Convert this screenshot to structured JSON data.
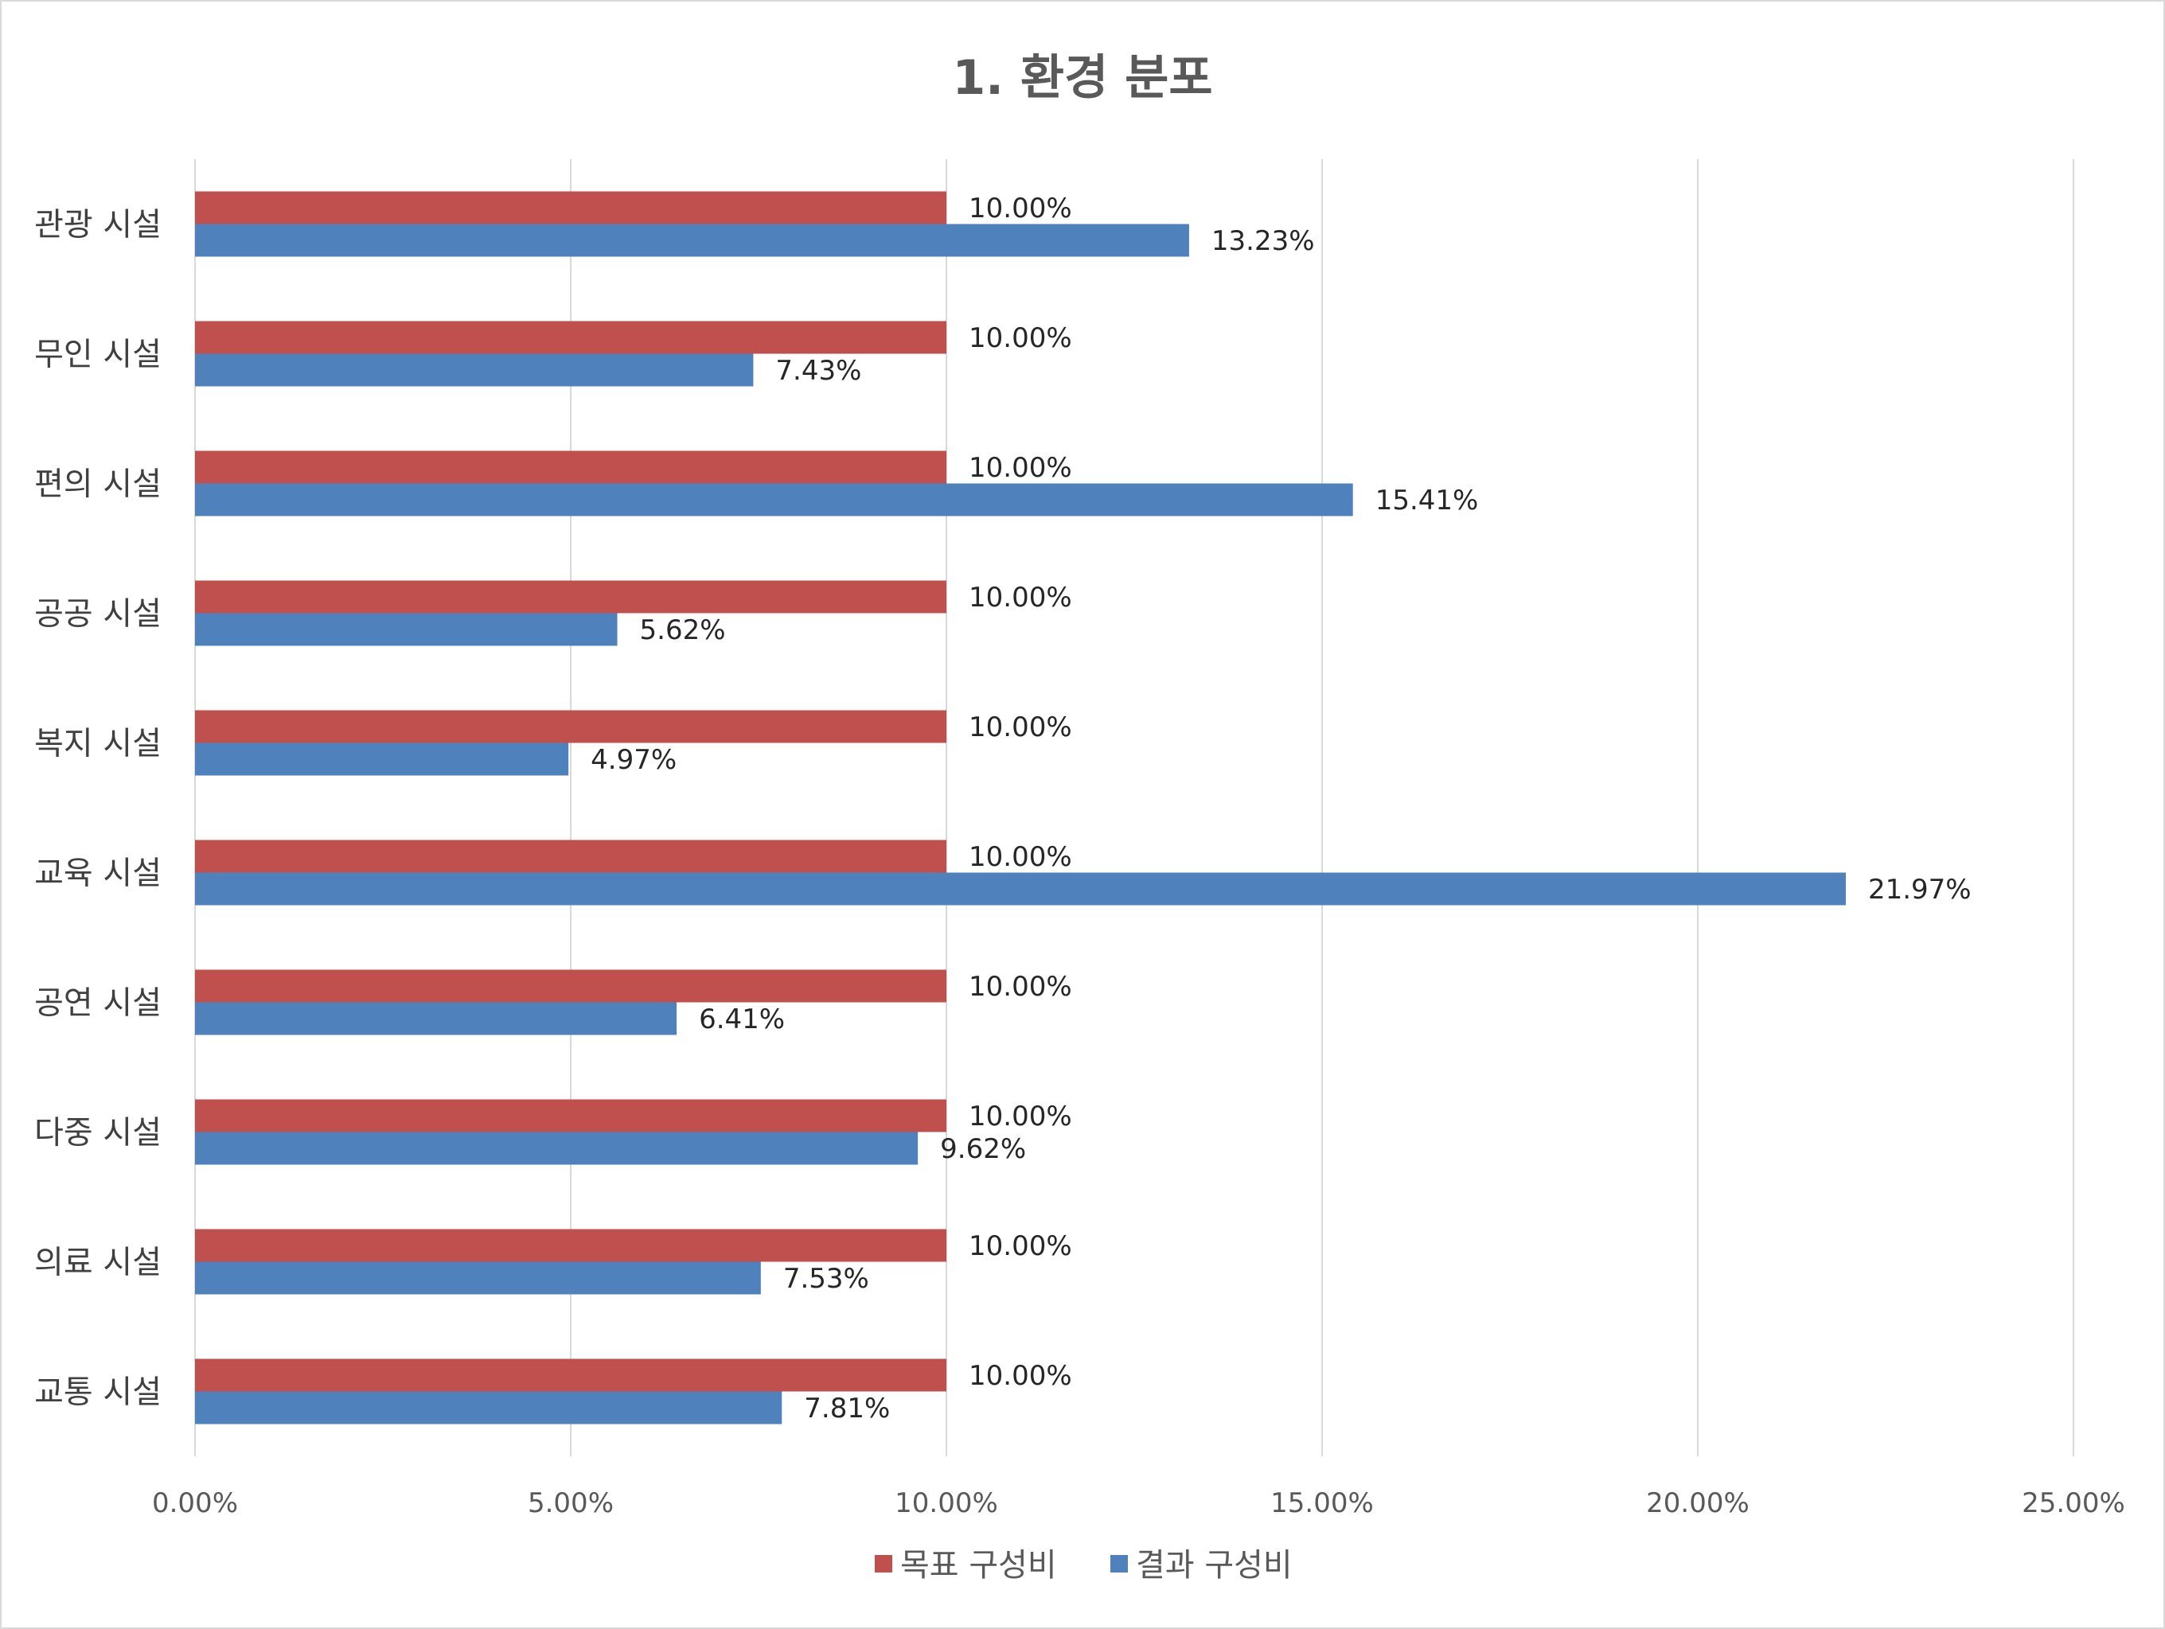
{
  "chart_data": {
    "type": "bar",
    "orientation": "horizontal",
    "title": "1. 환경 분포",
    "categories": [
      "관광 시설",
      "무인 시설",
      "편의 시설",
      "공공 시설",
      "복지 시설",
      "교육 시설",
      "공연 시설",
      "다중 시설",
      "의료 시설",
      "교통 시설"
    ],
    "series": [
      {
        "name": "목표 구성비",
        "color": "#c0504d",
        "values": [
          10.0,
          10.0,
          10.0,
          10.0,
          10.0,
          10.0,
          10.0,
          10.0,
          10.0,
          10.0
        ],
        "labels": [
          "10.00%",
          "10.00%",
          "10.00%",
          "10.00%",
          "10.00%",
          "10.00%",
          "10.00%",
          "10.00%",
          "10.00%",
          "10.00%"
        ]
      },
      {
        "name": "결과 구성비",
        "color": "#4f81bd",
        "values": [
          13.23,
          7.43,
          15.41,
          5.62,
          4.97,
          21.97,
          6.41,
          9.62,
          7.53,
          7.81
        ],
        "labels": [
          "13.23%",
          "7.43%",
          "15.41%",
          "5.62%",
          "4.97%",
          "21.97%",
          "6.41%",
          "9.62%",
          "7.53%",
          "7.81%"
        ]
      }
    ],
    "xlim": [
      0,
      25
    ],
    "xticks": [
      0,
      5,
      10,
      15,
      20,
      25
    ],
    "xtick_labels": [
      "0.00%",
      "5.00%",
      "10.00%",
      "15.00%",
      "20.00%",
      "25.00%"
    ],
    "grid": "vertical",
    "legend": "bottom"
  }
}
